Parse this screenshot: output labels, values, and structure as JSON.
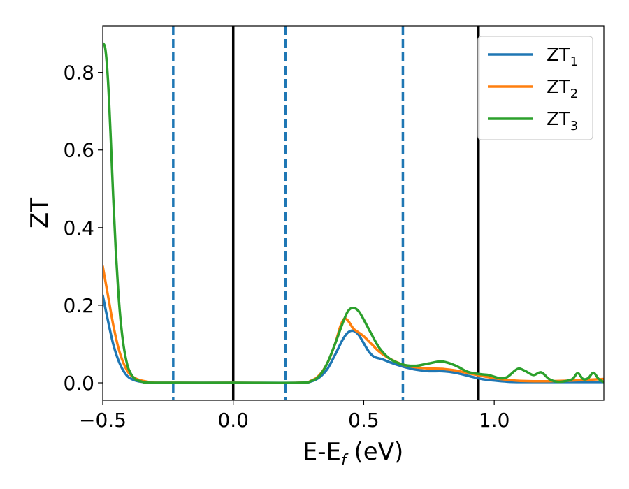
{
  "chart_data": {
    "type": "line",
    "xlabel": "E-E",
    "xlabel_sub": "f",
    "xlabel_unit": " (eV)",
    "ylabel": "ZT",
    "xlim": [
      -0.5,
      1.42
    ],
    "ylim": [
      -0.045,
      0.92
    ],
    "grid": false,
    "legend": "top-right",
    "x_ticks": [
      {
        "value": -0.5,
        "label": "−0.5"
      },
      {
        "value": 0.0,
        "label": "0.0"
      },
      {
        "value": 0.5,
        "label": "0.5"
      },
      {
        "value": 1.0,
        "label": "1.0"
      }
    ],
    "y_ticks": [
      {
        "value": 0.0,
        "label": "0.0"
      },
      {
        "value": 0.2,
        "label": "0.2"
      },
      {
        "value": 0.4,
        "label": "0.4"
      },
      {
        "value": 0.6,
        "label": "0.6"
      },
      {
        "value": 0.8,
        "label": "0.8"
      }
    ],
    "vlines": [
      {
        "x": -0.23,
        "style": "dashed",
        "color": "#1f77b4"
      },
      {
        "x": 0.0,
        "style": "solid",
        "color": "#000000"
      },
      {
        "x": 0.2,
        "style": "dashed",
        "color": "#1f77b4"
      },
      {
        "x": 0.65,
        "style": "dashed",
        "color": "#1f77b4"
      },
      {
        "x": 0.94,
        "style": "solid",
        "color": "#000000"
      }
    ],
    "series": [
      {
        "name": "ZT",
        "name_sub": "1",
        "color": "#1f77b4",
        "points": [
          [
            -0.5,
            0.225
          ],
          [
            -0.48,
            0.16
          ],
          [
            -0.46,
            0.1
          ],
          [
            -0.44,
            0.058
          ],
          [
            -0.42,
            0.03
          ],
          [
            -0.4,
            0.014
          ],
          [
            -0.37,
            0.005
          ],
          [
            -0.33,
            0.001
          ],
          [
            -0.28,
            0.0
          ],
          [
            0.0,
            0.0
          ],
          [
            0.25,
            0.0
          ],
          [
            0.3,
            0.004
          ],
          [
            0.33,
            0.014
          ],
          [
            0.36,
            0.035
          ],
          [
            0.39,
            0.072
          ],
          [
            0.42,
            0.112
          ],
          [
            0.44,
            0.13
          ],
          [
            0.46,
            0.134
          ],
          [
            0.48,
            0.124
          ],
          [
            0.5,
            0.102
          ],
          [
            0.52,
            0.08
          ],
          [
            0.54,
            0.067
          ],
          [
            0.57,
            0.061
          ],
          [
            0.6,
            0.053
          ],
          [
            0.63,
            0.046
          ],
          [
            0.66,
            0.04
          ],
          [
            0.7,
            0.034
          ],
          [
            0.75,
            0.03
          ],
          [
            0.8,
            0.03
          ],
          [
            0.85,
            0.026
          ],
          [
            0.9,
            0.018
          ],
          [
            0.95,
            0.01
          ],
          [
            1.0,
            0.006
          ],
          [
            1.05,
            0.003
          ],
          [
            1.1,
            0.002
          ],
          [
            1.2,
            0.002
          ],
          [
            1.3,
            0.002
          ],
          [
            1.42,
            0.002
          ]
        ]
      },
      {
        "name": "ZT",
        "name_sub": "2",
        "color": "#ff7f0e",
        "points": [
          [
            -0.5,
            0.3
          ],
          [
            -0.48,
            0.225
          ],
          [
            -0.46,
            0.15
          ],
          [
            -0.44,
            0.09
          ],
          [
            -0.42,
            0.05
          ],
          [
            -0.4,
            0.025
          ],
          [
            -0.37,
            0.01
          ],
          [
            -0.33,
            0.003
          ],
          [
            -0.28,
            0.0
          ],
          [
            0.0,
            0.0
          ],
          [
            0.25,
            0.0
          ],
          [
            0.3,
            0.006
          ],
          [
            0.33,
            0.02
          ],
          [
            0.36,
            0.05
          ],
          [
            0.39,
            0.1
          ],
          [
            0.41,
            0.145
          ],
          [
            0.425,
            0.165
          ],
          [
            0.44,
            0.16
          ],
          [
            0.46,
            0.14
          ],
          [
            0.48,
            0.13
          ],
          [
            0.5,
            0.12
          ],
          [
            0.53,
            0.1
          ],
          [
            0.56,
            0.08
          ],
          [
            0.6,
            0.062
          ],
          [
            0.65,
            0.047
          ],
          [
            0.7,
            0.04
          ],
          [
            0.75,
            0.037
          ],
          [
            0.8,
            0.036
          ],
          [
            0.85,
            0.032
          ],
          [
            0.9,
            0.025
          ],
          [
            0.95,
            0.018
          ],
          [
            1.0,
            0.012
          ],
          [
            1.05,
            0.008
          ],
          [
            1.1,
            0.005
          ],
          [
            1.2,
            0.004
          ],
          [
            1.3,
            0.006
          ],
          [
            1.42,
            0.01
          ]
        ]
      },
      {
        "name": "ZT",
        "name_sub": "3",
        "color": "#2ca02c",
        "points": [
          [
            -0.5,
            0.875
          ],
          [
            -0.49,
            0.86
          ],
          [
            -0.48,
            0.78
          ],
          [
            -0.47,
            0.64
          ],
          [
            -0.46,
            0.48
          ],
          [
            -0.45,
            0.34
          ],
          [
            -0.44,
            0.23
          ],
          [
            -0.43,
            0.15
          ],
          [
            -0.42,
            0.095
          ],
          [
            -0.41,
            0.058
          ],
          [
            -0.4,
            0.034
          ],
          [
            -0.38,
            0.012
          ],
          [
            -0.35,
            0.003
          ],
          [
            -0.3,
            0.0
          ],
          [
            0.0,
            0.0
          ],
          [
            0.25,
            0.0
          ],
          [
            0.3,
            0.005
          ],
          [
            0.33,
            0.018
          ],
          [
            0.36,
            0.05
          ],
          [
            0.39,
            0.1
          ],
          [
            0.42,
            0.155
          ],
          [
            0.44,
            0.185
          ],
          [
            0.46,
            0.193
          ],
          [
            0.48,
            0.185
          ],
          [
            0.5,
            0.163
          ],
          [
            0.53,
            0.125
          ],
          [
            0.56,
            0.09
          ],
          [
            0.6,
            0.062
          ],
          [
            0.65,
            0.047
          ],
          [
            0.7,
            0.044
          ],
          [
            0.75,
            0.05
          ],
          [
            0.8,
            0.055
          ],
          [
            0.85,
            0.045
          ],
          [
            0.9,
            0.028
          ],
          [
            0.95,
            0.022
          ],
          [
            0.98,
            0.02
          ],
          [
            1.02,
            0.012
          ],
          [
            1.05,
            0.015
          ],
          [
            1.09,
            0.036
          ],
          [
            1.12,
            0.03
          ],
          [
            1.15,
            0.02
          ],
          [
            1.18,
            0.027
          ],
          [
            1.21,
            0.01
          ],
          [
            1.24,
            0.003
          ],
          [
            1.27,
            0.004
          ],
          [
            1.3,
            0.01
          ],
          [
            1.32,
            0.025
          ],
          [
            1.34,
            0.01
          ],
          [
            1.36,
            0.012
          ],
          [
            1.38,
            0.026
          ],
          [
            1.4,
            0.01
          ],
          [
            1.42,
            0.002
          ]
        ]
      }
    ]
  }
}
